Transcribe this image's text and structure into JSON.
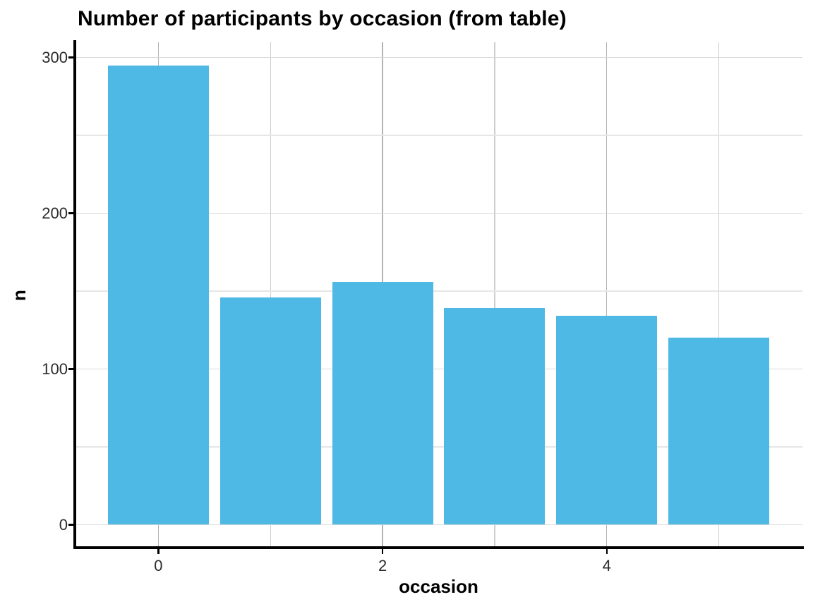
{
  "chart_data": {
    "type": "bar",
    "title": "Number of participants by occasion (from table)",
    "xlabel": "occasion",
    "ylabel": "n",
    "categories": [
      0,
      1,
      2,
      3,
      4,
      5
    ],
    "values": [
      295,
      146,
      156,
      139,
      134,
      120
    ],
    "bar_width": 0.9,
    "x_axis": {
      "domain": [
        -0.745,
        5.745
      ],
      "major_ticks": [
        0,
        2,
        4
      ],
      "tick_labels": [
        "0",
        "2",
        "4"
      ],
      "minor_ticks": [
        1,
        3,
        5
      ]
    },
    "y_axis": {
      "domain": [
        -14.75,
        309.75
      ],
      "major_ticks": [
        0,
        100,
        200,
        300
      ],
      "tick_labels": [
        "0",
        "100",
        "200",
        "300"
      ],
      "minor_ticks": [
        50,
        150,
        250
      ]
    },
    "grid": "major+minor",
    "legend": "none",
    "background": "#ffffff",
    "colors": {
      "bar_fill": "#4FB9E6",
      "grid_major_h": "#D9D9D9",
      "grid_minor_h": "#E6E6E6",
      "grid_major_v": "#B3B3B3",
      "grid_minor_v": "#CDCDCD",
      "axis_line": "#000000",
      "tick_label": "#2B2B2B",
      "title": "#000000"
    }
  }
}
